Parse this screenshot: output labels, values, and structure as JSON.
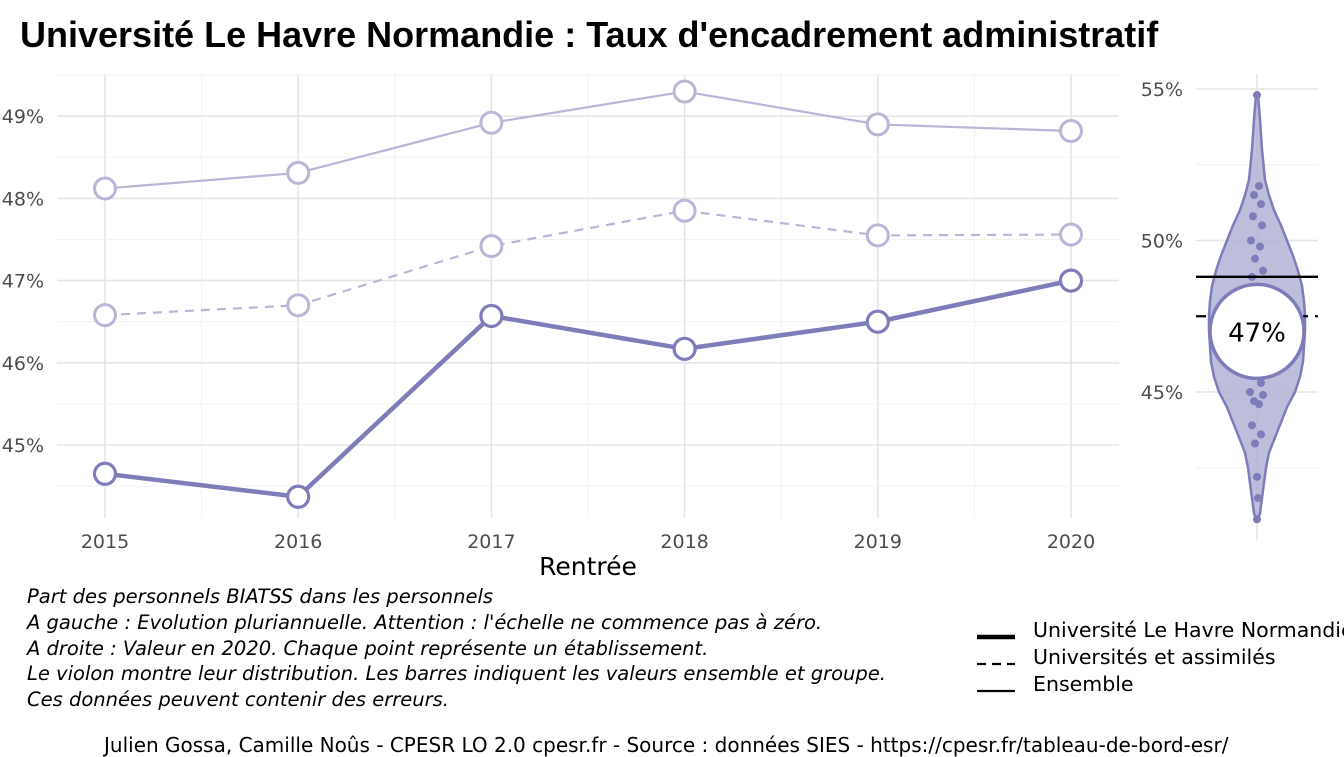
{
  "title": "Université Le Havre Normandie  :  Taux d'encadrement administratif",
  "chart_data": [
    {
      "type": "line",
      "xlabel": "Rentrée",
      "ylabel": "",
      "x": [
        2015,
        2016,
        2017,
        2018,
        2019,
        2020
      ],
      "x_tick_labels": [
        "2015",
        "2016",
        "2017",
        "2018",
        "2019",
        "2020"
      ],
      "y_tick_labels": [
        "45%",
        "46%",
        "47%",
        "48%",
        "49%"
      ],
      "y_ticks": [
        45,
        46,
        47,
        48,
        49
      ],
      "ylim": [
        44.5,
        49.5
      ],
      "grid": true,
      "series": [
        {
          "name": "Université Le Havre Normandie",
          "style": "solid-thick",
          "color": "#7e7cb9",
          "values": [
            44.65,
            44.37,
            46.57,
            46.17,
            46.5,
            47.0
          ]
        },
        {
          "name": "Universités et assimilés",
          "style": "dashed",
          "color": "#b9b7d7",
          "values": [
            46.58,
            46.7,
            47.42,
            47.85,
            47.55,
            47.56
          ]
        },
        {
          "name": "Ensemble",
          "style": "solid-thin",
          "color": "#b9b7d7",
          "values": [
            48.12,
            48.31,
            48.92,
            49.3,
            48.9,
            48.82
          ]
        }
      ]
    },
    {
      "type": "violin",
      "y_tick_labels": [
        "45%",
        "50%",
        "55%"
      ],
      "y_ticks": [
        45,
        50,
        55
      ],
      "ylim": [
        40.8,
        55.5
      ],
      "value_label": "47%",
      "value": 47.0,
      "ensemble_line": 48.8,
      "group_line": 47.5,
      "fill": "#b2b1d6",
      "stroke": "#7e7cb9",
      "points": [
        54.8,
        51.8,
        51.5,
        51.2,
        50.8,
        50.5,
        50.0,
        49.8,
        49.4,
        49.0,
        48.8,
        45.3,
        45.0,
        44.9,
        44.7,
        44.6,
        43.9,
        43.6,
        43.3,
        42.2,
        41.5,
        40.8
      ]
    }
  ],
  "notes": [
    "Part des personnels BIATSS dans les personnels",
    "A gauche : Evolution pluriannuelle. Attention : l'échelle ne commence pas à zéro.",
    "A droite : Valeur en 2020. Chaque point représente un établissement.",
    "Le violon montre leur distribution. Les barres indiquent les valeurs ensemble et groupe.",
    "Ces données peuvent contenir des erreurs."
  ],
  "legend": [
    {
      "label": "Université Le Havre Normandie",
      "style": "thick"
    },
    {
      "label": "Universités et assimilés",
      "style": "dashed"
    },
    {
      "label": "Ensemble",
      "style": "thin"
    }
  ],
  "caption": "Julien Gossa, Camille Noûs - CPESR LO 2.0 cpesr.fr - Source : données SIES - https://cpesr.fr/tableau-de-bord-esr/"
}
